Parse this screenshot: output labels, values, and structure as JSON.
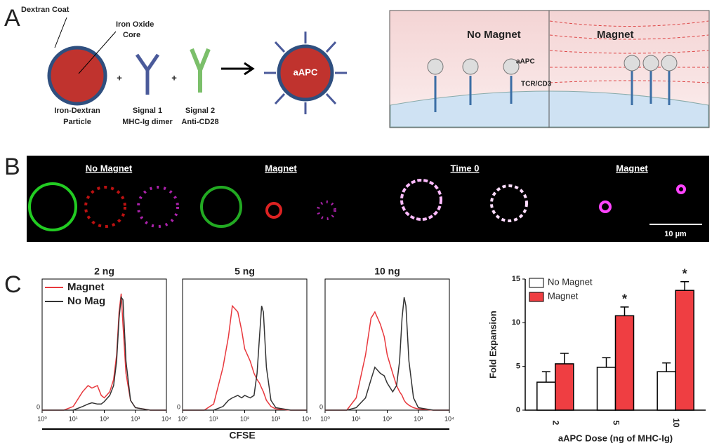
{
  "panels": {
    "a": {
      "label": "A",
      "dextran": "Dextran Coat",
      "core1": "Iron Oxide",
      "core2": "Core",
      "particle1": "Iron-Dextran",
      "particle2": "Particle",
      "sig1a": "Signal 1",
      "sig1b": "MHC-Ig dimer",
      "sig2a": "Signal 2",
      "sig2b": "Anti-CD28",
      "plus": "+",
      "aapc": "aAPC",
      "nomag": "No Magnet",
      "mag": "Magnet",
      "aapc2": "aAPC",
      "tcr": "TCR/CD3"
    },
    "b": {
      "label": "B",
      "t1": "No Magnet",
      "t2": "Magnet",
      "t3": "Time 0",
      "t4": "Magnet",
      "scale": "10 µm"
    },
    "c": {
      "label": "C"
    }
  },
  "chart_data": [
    {
      "type": "line",
      "title": "2  ng",
      "xlabel": "CFSE",
      "legend": "upper left",
      "xscale": "log",
      "x": [
        1,
        5,
        10,
        20,
        30,
        40,
        60,
        80,
        100,
        150,
        200,
        250,
        300,
        350,
        400,
        500,
        700,
        1000,
        3000,
        10000
      ],
      "series": [
        {
          "name": "Magnet",
          "color": "#e8383d",
          "values": [
            0,
            0,
            3,
            15,
            20,
            18,
            20,
            12,
            10,
            15,
            25,
            45,
            80,
            95,
            70,
            30,
            8,
            2,
            0,
            0
          ]
        },
        {
          "name": "No Mag",
          "color": "#333333",
          "values": [
            0,
            0,
            0,
            3,
            5,
            6,
            5,
            5,
            7,
            12,
            20,
            40,
            75,
            92,
            90,
            40,
            8,
            2,
            0,
            0
          ]
        }
      ],
      "xlim": [
        1,
        10000
      ],
      "xticks": [
        {
          "value": 1,
          "label": "10⁰"
        },
        {
          "value": 10,
          "label": "10¹"
        },
        {
          "value": 100,
          "label": "10²"
        },
        {
          "value": 1000,
          "label": "10³"
        },
        {
          "value": 10000,
          "label": "10⁴"
        }
      ],
      "ylim": [
        0,
        100
      ],
      "yticks": [
        0
      ]
    },
    {
      "type": "line",
      "title": "5  ng",
      "xscale": "log",
      "x": [
        1,
        5,
        10,
        20,
        30,
        40,
        60,
        80,
        100,
        150,
        200,
        250,
        300,
        350,
        400,
        500,
        700,
        1000,
        3000,
        10000
      ],
      "series": [
        {
          "color": "#e8383d",
          "values": [
            0,
            0,
            5,
            35,
            60,
            85,
            80,
            65,
            50,
            40,
            30,
            25,
            22,
            18,
            15,
            8,
            3,
            1,
            0,
            0
          ]
        },
        {
          "color": "#333333",
          "values": [
            0,
            0,
            0,
            3,
            8,
            10,
            12,
            10,
            12,
            10,
            12,
            30,
            60,
            85,
            80,
            35,
            8,
            2,
            0,
            0
          ]
        }
      ],
      "xlim": [
        1,
        10000
      ],
      "xticks": [
        {
          "value": 1,
          "label": "10⁰"
        },
        {
          "value": 10,
          "label": "10¹"
        },
        {
          "value": 100,
          "label": "10²"
        },
        {
          "value": 1000,
          "label": "10³"
        },
        {
          "value": 10000,
          "label": "10⁴"
        }
      ],
      "ylim": [
        0,
        100
      ],
      "yticks": [
        0
      ]
    },
    {
      "type": "line",
      "title": "10  ng",
      "xscale": "log",
      "x": [
        1,
        5,
        10,
        20,
        30,
        40,
        60,
        80,
        100,
        150,
        200,
        250,
        300,
        350,
        400,
        500,
        700,
        1000,
        3000,
        10000
      ],
      "series": [
        {
          "color": "#e8383d",
          "values": [
            0,
            0,
            10,
            45,
            75,
            80,
            70,
            60,
            45,
            30,
            20,
            15,
            12,
            8,
            6,
            4,
            2,
            1,
            0,
            0
          ]
        },
        {
          "color": "#333333",
          "values": [
            0,
            0,
            2,
            10,
            25,
            35,
            30,
            28,
            22,
            15,
            20,
            40,
            75,
            92,
            85,
            40,
            10,
            2,
            0,
            0
          ]
        }
      ],
      "xlim": [
        1,
        10000
      ],
      "xticks": [
        {
          "value": 1,
          "label": "10⁰"
        },
        {
          "value": 10,
          "label": "10¹"
        },
        {
          "value": 100,
          "label": "10²"
        },
        {
          "value": 1000,
          "label": "10³"
        },
        {
          "value": 10000,
          "label": "10⁴"
        }
      ],
      "ylim": [
        0,
        100
      ],
      "yticks": [
        0
      ]
    },
    {
      "type": "bar",
      "ylabel": "Fold  Expansion",
      "xlabel": "aAPC Dose (ng of MHC-Ig)",
      "legend": "upper left",
      "categories": [
        "2",
        "5",
        "10"
      ],
      "series": [
        {
          "name": "No Magnet",
          "color": "#ffffff",
          "values": [
            3.2,
            4.9,
            4.4
          ],
          "errors": [
            1.2,
            1.1,
            1.0
          ]
        },
        {
          "name": "Magnet",
          "color": "#ef3e42",
          "values": [
            5.3,
            10.8,
            13.7
          ],
          "errors": [
            1.2,
            1.0,
            1.0
          ]
        }
      ],
      "annotations": [
        {
          "text": "*",
          "category": "5"
        },
        {
          "text": "*",
          "category": "10"
        }
      ],
      "ylim": [
        0,
        15
      ],
      "yticks": [
        0,
        5,
        10,
        15
      ]
    }
  ]
}
